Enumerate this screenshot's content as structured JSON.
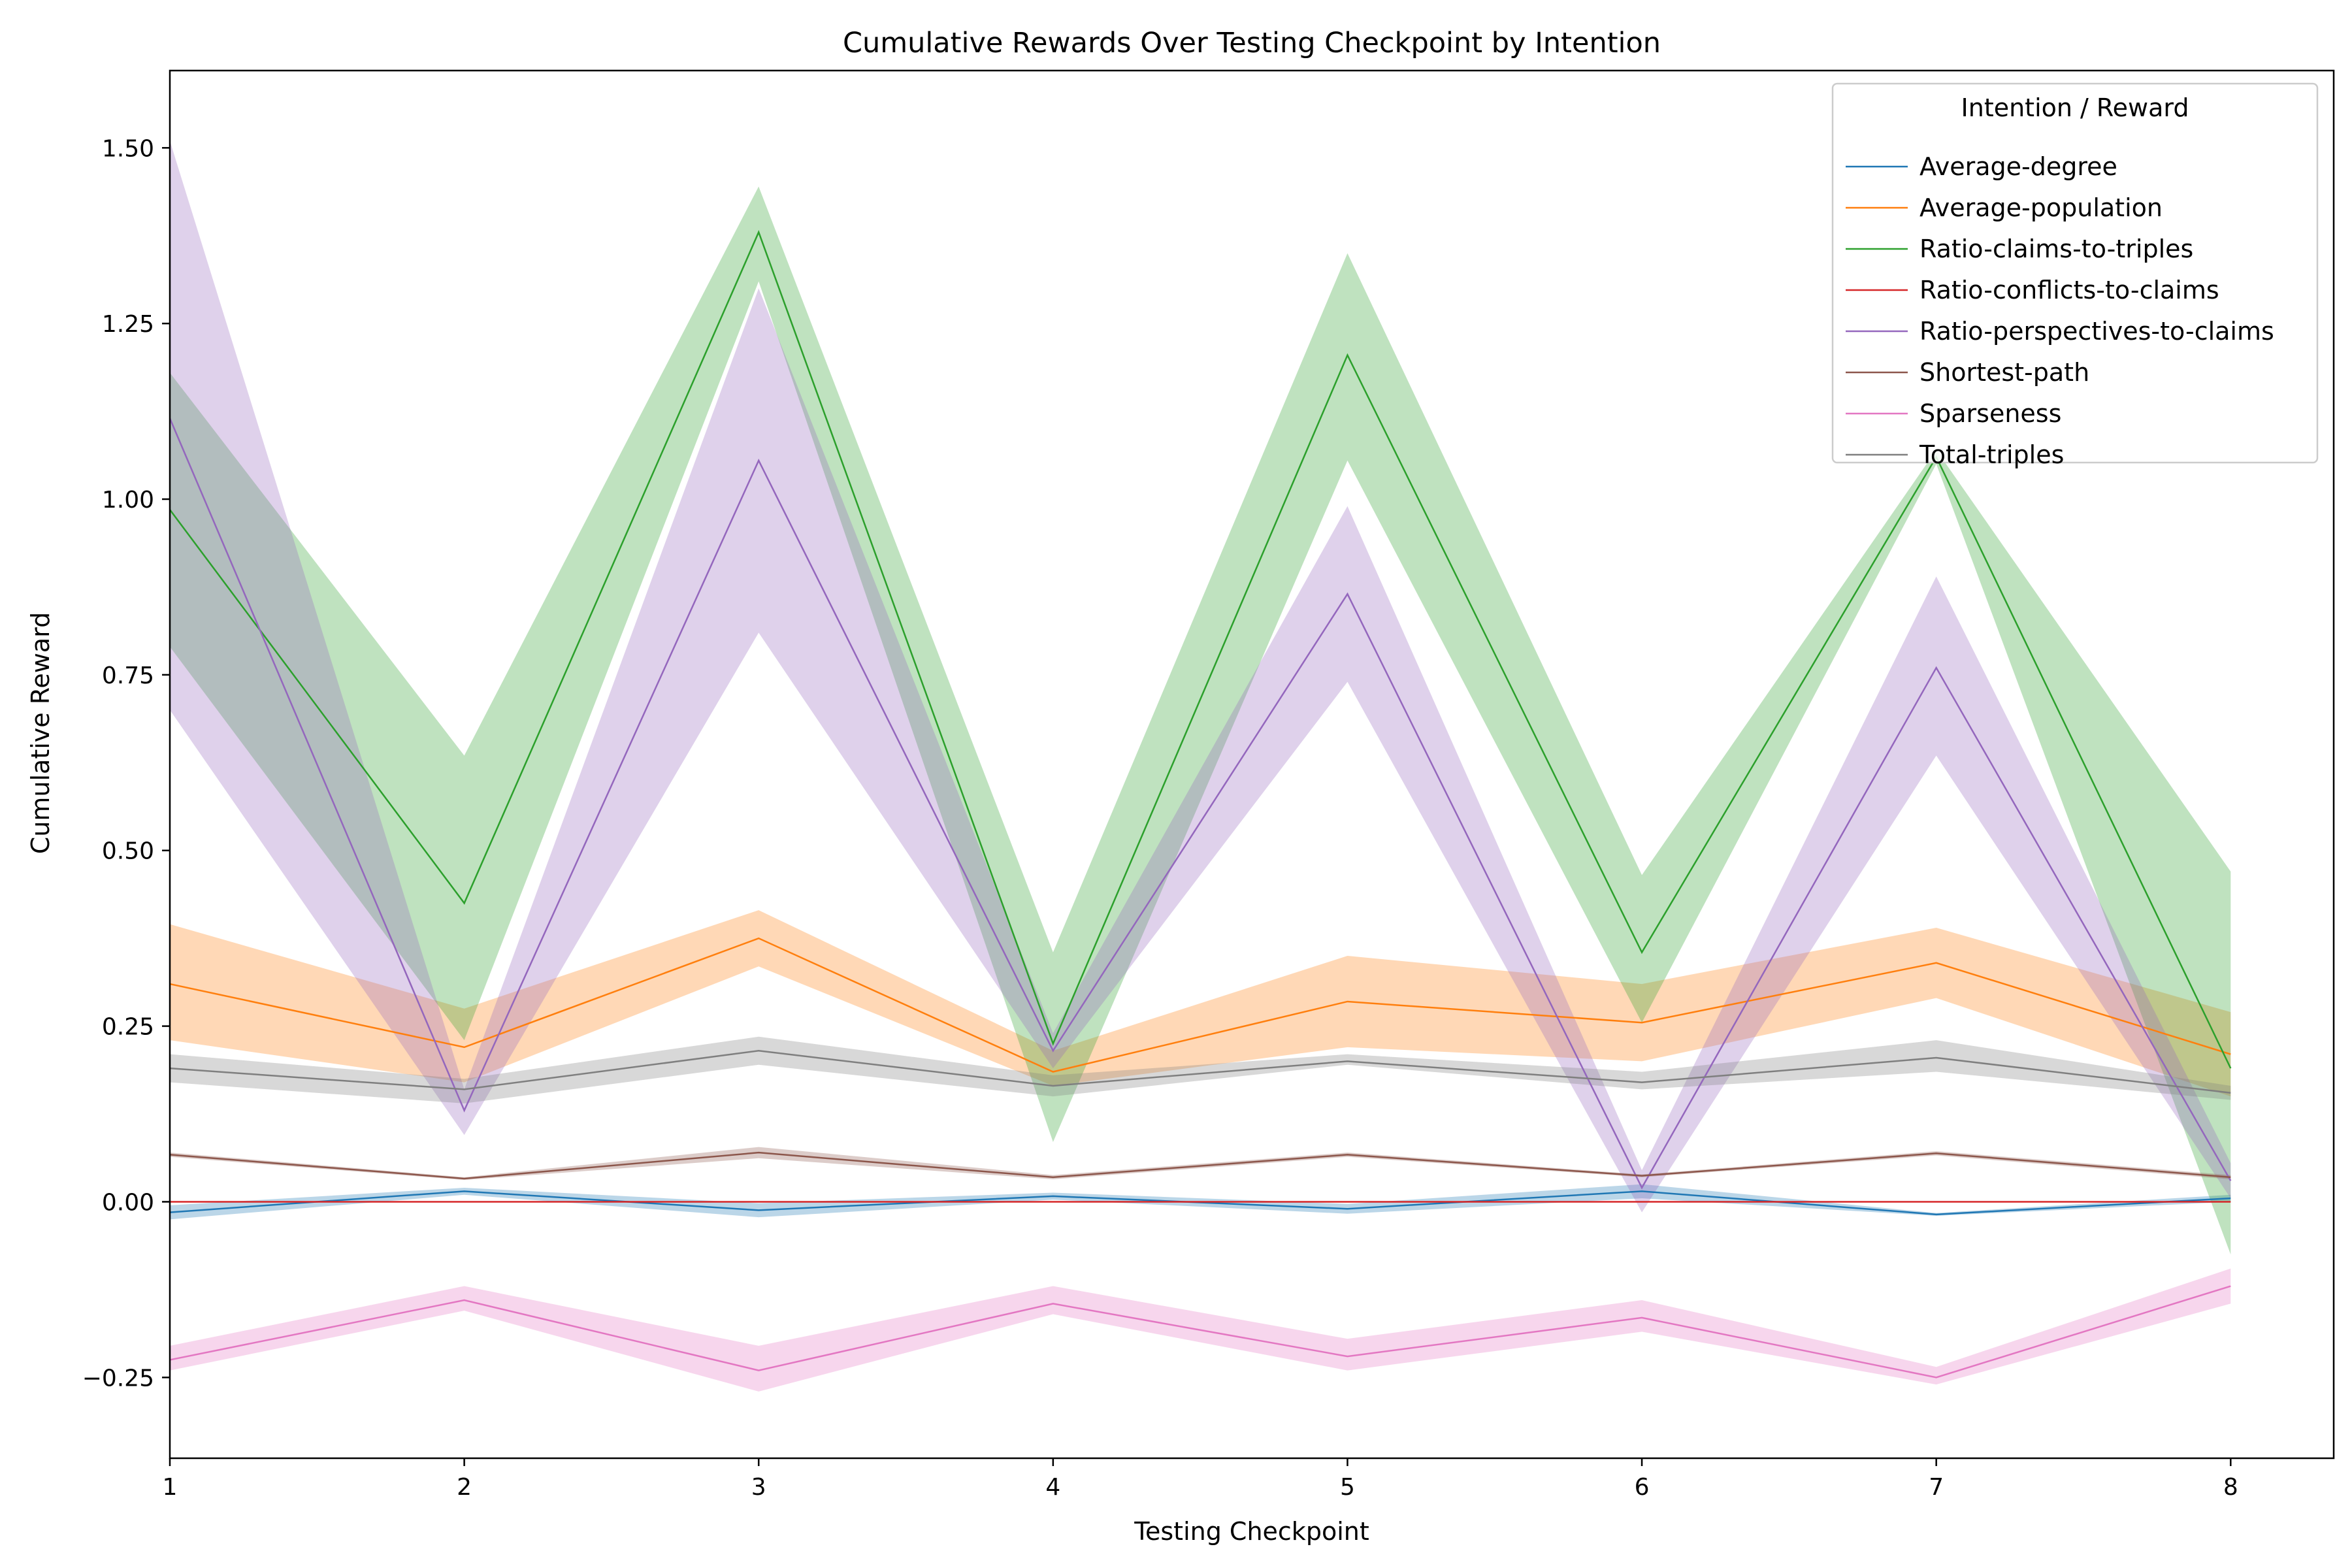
{
  "chart_data": {
    "type": "line",
    "title": "Cumulative Rewards Over Testing Checkpoint by Intention",
    "xlabel": "Testing Checkpoint",
    "ylabel": "Cumulative Reward",
    "x": [
      1,
      2,
      3,
      4,
      5,
      6,
      7,
      8
    ],
    "xlim": [
      1,
      8.35
    ],
    "ylim": [
      -0.365,
      1.61
    ],
    "xticks": [
      1,
      2,
      3,
      4,
      5,
      6,
      7,
      8
    ],
    "yticks": [
      -0.25,
      0.0,
      0.25,
      0.5,
      0.75,
      1.0,
      1.25,
      1.5
    ],
    "ytick_labels": [
      "−0.25",
      "0.00",
      "0.25",
      "0.50",
      "0.75",
      "1.00",
      "1.25",
      "1.50"
    ],
    "grid": false,
    "legend": {
      "title": "Intention / Reward",
      "placement": "top-right"
    },
    "series": [
      {
        "name": "Average-degree",
        "color": "#1f77b4",
        "values": [
          -0.015,
          0.015,
          -0.012,
          0.008,
          -0.01,
          0.015,
          -0.018,
          0.005
        ],
        "lower": [
          -0.025,
          0.01,
          -0.022,
          0.003,
          -0.017,
          0.005,
          -0.02,
          0.0
        ],
        "upper": [
          -0.005,
          0.02,
          -0.002,
          0.013,
          -0.003,
          0.025,
          -0.016,
          0.01
        ]
      },
      {
        "name": "Average-population",
        "color": "#ff7f0e",
        "values": [
          0.31,
          0.22,
          0.375,
          0.185,
          0.285,
          0.255,
          0.34,
          0.21
        ],
        "lower": [
          0.23,
          0.17,
          0.335,
          0.165,
          0.22,
          0.2,
          0.29,
          0.15
        ],
        "upper": [
          0.395,
          0.275,
          0.415,
          0.215,
          0.35,
          0.31,
          0.39,
          0.27
        ]
      },
      {
        "name": "Ratio-claims-to-triples",
        "color": "#2ca02c",
        "values": [
          0.985,
          0.425,
          1.38,
          0.225,
          1.205,
          0.355,
          1.06,
          0.19
        ],
        "lower": [
          0.79,
          0.23,
          1.31,
          0.085,
          1.055,
          0.255,
          1.05,
          -0.075
        ],
        "upper": [
          1.18,
          0.635,
          1.445,
          0.355,
          1.35,
          0.465,
          1.07,
          0.47
        ]
      },
      {
        "name": "Ratio-conflicts-to-claims",
        "color": "#d62728",
        "values": [
          0.0,
          0.0,
          0.0,
          0.0,
          0.0,
          0.0,
          0.0,
          0.0
        ],
        "lower": [
          0.0,
          0.0,
          0.0,
          0.0,
          0.0,
          0.0,
          0.0,
          0.0
        ],
        "upper": [
          0.0,
          0.0,
          0.0,
          0.0,
          0.0,
          0.0,
          0.0,
          0.0
        ]
      },
      {
        "name": "Ratio-perspectives-to-claims",
        "color": "#9467bd",
        "values": [
          1.115,
          0.13,
          1.055,
          0.215,
          0.865,
          0.02,
          0.76,
          0.03
        ],
        "lower": [
          0.7,
          0.095,
          0.81,
          0.19,
          0.74,
          -0.015,
          0.635,
          0.005
        ],
        "upper": [
          1.51,
          0.16,
          1.3,
          0.24,
          0.99,
          0.045,
          0.89,
          0.055
        ]
      },
      {
        "name": "Shortest-path",
        "color": "#8c564b",
        "values": [
          0.067,
          0.033,
          0.07,
          0.035,
          0.067,
          0.037,
          0.069,
          0.035
        ],
        "lower": [
          0.064,
          0.031,
          0.062,
          0.032,
          0.064,
          0.035,
          0.066,
          0.032
        ],
        "upper": [
          0.07,
          0.035,
          0.078,
          0.038,
          0.07,
          0.039,
          0.072,
          0.038
        ]
      },
      {
        "name": "Sparseness",
        "color": "#e377c2",
        "values": [
          -0.225,
          -0.14,
          -0.24,
          -0.145,
          -0.22,
          -0.165,
          -0.25,
          -0.12
        ],
        "lower": [
          -0.24,
          -0.155,
          -0.27,
          -0.16,
          -0.24,
          -0.185,
          -0.26,
          -0.145
        ],
        "upper": [
          -0.205,
          -0.12,
          -0.205,
          -0.12,
          -0.195,
          -0.14,
          -0.235,
          -0.095
        ]
      },
      {
        "name": "Total-triples",
        "color": "#7f7f7f",
        "values": [
          0.19,
          0.16,
          0.215,
          0.165,
          0.2,
          0.17,
          0.205,
          0.155
        ],
        "lower": [
          0.17,
          0.14,
          0.195,
          0.15,
          0.195,
          0.16,
          0.185,
          0.145
        ],
        "upper": [
          0.21,
          0.175,
          0.235,
          0.18,
          0.21,
          0.185,
          0.23,
          0.165
        ]
      }
    ]
  }
}
